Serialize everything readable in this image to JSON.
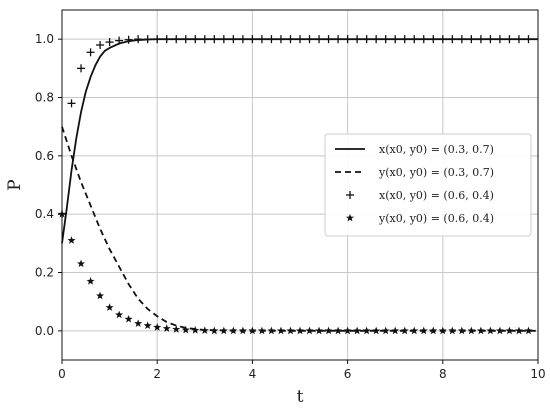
{
  "chart_data": {
    "type": "line",
    "xlabel": "t",
    "ylabel": "P",
    "xlim": [
      0,
      10
    ],
    "ylim": [
      -0.1,
      1.1
    ],
    "x_ticks": [
      0,
      2,
      4,
      6,
      8,
      10
    ],
    "y_ticks": [
      0.0,
      0.2,
      0.4,
      0.6,
      0.8,
      1.0
    ],
    "x_tick_labels": [
      "0",
      "2",
      "4",
      "6",
      "8",
      "10"
    ],
    "y_tick_labels": [
      "0.0",
      "0.2",
      "0.4",
      "0.6",
      "0.8",
      "1.0"
    ],
    "grid": true,
    "legend_position": "center-right",
    "series": [
      {
        "name": "x(x0, y0) = (0.3, 0.7)",
        "style": "solid-line",
        "color": "#111111",
        "x": [
          0,
          0.1,
          0.2,
          0.3,
          0.4,
          0.5,
          0.6,
          0.7,
          0.8,
          0.9,
          1.0,
          1.2,
          1.4,
          1.6,
          1.8,
          2.0,
          2.5,
          3,
          4,
          5,
          6,
          7,
          8,
          9,
          10
        ],
        "y": [
          0.3,
          0.42,
          0.55,
          0.66,
          0.75,
          0.82,
          0.87,
          0.91,
          0.94,
          0.96,
          0.97,
          0.985,
          0.993,
          0.997,
          0.999,
          1.0,
          1.0,
          1.0,
          1.0,
          1.0,
          1.0,
          1.0,
          1.0,
          1.0,
          1.0
        ]
      },
      {
        "name": "y(x0, y0) = (0.3, 0.7)",
        "style": "dashed-line",
        "color": "#111111",
        "x": [
          0,
          0.2,
          0.4,
          0.6,
          0.8,
          1.0,
          1.2,
          1.4,
          1.6,
          1.8,
          2.0,
          2.2,
          2.4,
          2.6,
          2.8,
          3.0,
          3.5,
          4,
          5,
          6,
          7,
          8,
          9,
          10
        ],
        "y": [
          0.7,
          0.6,
          0.51,
          0.43,
          0.35,
          0.28,
          0.22,
          0.16,
          0.11,
          0.075,
          0.05,
          0.03,
          0.018,
          0.01,
          0.006,
          0.003,
          0.001,
          0.0,
          0.0,
          0.0,
          0.0,
          0.0,
          0.0,
          0.0
        ]
      },
      {
        "name": "x(x0, y0) = (0.6, 0.4)",
        "style": "plus-markers",
        "color": "#111111",
        "x": [
          0,
          0.2,
          0.4,
          0.6,
          0.8,
          1.0,
          1.2,
          1.4,
          1.6,
          1.8,
          2.0,
          2.2,
          2.4,
          2.6,
          2.8,
          3.0,
          3.2,
          3.4,
          3.6,
          3.8,
          4.0,
          4.2,
          4.4,
          4.6,
          4.8,
          5.0,
          5.2,
          5.4,
          5.6,
          5.8,
          6.0,
          6.2,
          6.4,
          6.6,
          6.8,
          7.0,
          7.2,
          7.4,
          7.6,
          7.8,
          8.0,
          8.2,
          8.4,
          8.6,
          8.8,
          9.0,
          9.2,
          9.4,
          9.6,
          9.8
        ],
        "y": [
          0.4,
          0.78,
          0.9,
          0.955,
          0.98,
          0.99,
          0.995,
          0.998,
          1.0,
          1.0,
          1.0,
          1.0,
          1.0,
          1.0,
          1.0,
          1.0,
          1.0,
          1.0,
          1.0,
          1.0,
          1.0,
          1.0,
          1.0,
          1.0,
          1.0,
          1.0,
          1.0,
          1.0,
          1.0,
          1.0,
          1.0,
          1.0,
          1.0,
          1.0,
          1.0,
          1.0,
          1.0,
          1.0,
          1.0,
          1.0,
          1.0,
          1.0,
          1.0,
          1.0,
          1.0,
          1.0,
          1.0,
          1.0,
          1.0,
          1.0
        ]
      },
      {
        "name": "y(x0, y0) = (0.6, 0.4)",
        "style": "star-markers",
        "color": "#111111",
        "x": [
          0,
          0.2,
          0.4,
          0.6,
          0.8,
          1.0,
          1.2,
          1.4,
          1.6,
          1.8,
          2.0,
          2.2,
          2.4,
          2.6,
          2.8,
          3.0,
          3.2,
          3.4,
          3.6,
          3.8,
          4.0,
          4.2,
          4.4,
          4.6,
          4.8,
          5.0,
          5.2,
          5.4,
          5.6,
          5.8,
          6.0,
          6.2,
          6.4,
          6.6,
          6.8,
          7.0,
          7.2,
          7.4,
          7.6,
          7.8,
          8.0,
          8.2,
          8.4,
          8.6,
          8.8,
          9.0,
          9.2,
          9.4,
          9.6,
          9.8
        ],
        "y": [
          0.4,
          0.31,
          0.23,
          0.17,
          0.12,
          0.08,
          0.055,
          0.04,
          0.025,
          0.018,
          0.012,
          0.008,
          0.005,
          0.003,
          0.002,
          0.001,
          0.0,
          0.0,
          0.0,
          0.0,
          0.0,
          0.0,
          0.0,
          0.0,
          0.0,
          0.0,
          0.0,
          0.0,
          0.0,
          0.0,
          0.0,
          0.0,
          0.0,
          0.0,
          0.0,
          0.0,
          0.0,
          0.0,
          0.0,
          0.0,
          0.0,
          0.0,
          0.0,
          0.0,
          0.0,
          0.0,
          0.0,
          0.0,
          0.0,
          0.0
        ]
      }
    ]
  }
}
